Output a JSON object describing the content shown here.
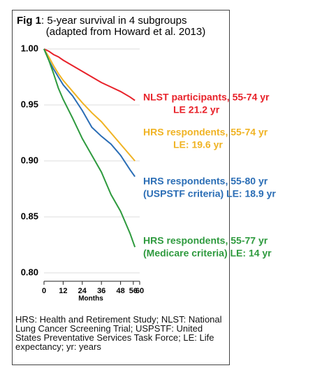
{
  "chart_data": {
    "type": "line",
    "title_prefix": "Fig 1",
    "title": ":  5-year survival in 4 subgroups",
    "subtitle": "(adapted from Howard et al. 2013)",
    "x_label": "Months",
    "x": [
      0,
      3,
      6,
      9,
      12,
      18,
      24,
      30,
      36,
      42,
      48,
      54,
      57
    ],
    "xlim": [
      0,
      60
    ],
    "xticks": [
      0,
      12,
      24,
      36,
      48,
      56,
      60
    ],
    "ylim": [
      0.8,
      1.0
    ],
    "yticks": [
      {
        "value": 0.8,
        "label": "0.80"
      },
      {
        "value": 0.85,
        "label": "0.85"
      },
      {
        "value": 0.9,
        "label": "0.90"
      },
      {
        "value": 0.95,
        "label": "0.95"
      },
      {
        "value": 1.0,
        "label": "1.00"
      }
    ],
    "grid": true,
    "series": [
      {
        "name": "NLST participants, 55-74 yr",
        "note": "LE 21.2 yr",
        "color": "#e8222a",
        "values": [
          1.0,
          0.998,
          0.995,
          0.993,
          0.99,
          0.985,
          0.98,
          0.975,
          0.97,
          0.966,
          0.962,
          0.957,
          0.954
        ]
      },
      {
        "name": "HRS respondents, 55-74 yr",
        "note": "LE: 19.6 yr",
        "color": "#f0b323",
        "values": [
          1.0,
          0.993,
          0.985,
          0.978,
          0.972,
          0.962,
          0.952,
          0.943,
          0.935,
          0.925,
          0.915,
          0.905,
          0.9
        ]
      },
      {
        "name": "HRS respondents, 55-80 yr",
        "note": "(USPSTF criteria) LE: 18.9 yr",
        "color": "#2a6db5",
        "values": [
          1.0,
          0.99,
          0.982,
          0.975,
          0.968,
          0.958,
          0.945,
          0.93,
          0.922,
          0.915,
          0.905,
          0.892,
          0.886
        ]
      },
      {
        "name": "HRS respondents, 55-77 yr",
        "note": "(Medicare criteria) LE: 14 yr",
        "color": "#2e9a3e",
        "values": [
          1.0,
          0.99,
          0.978,
          0.965,
          0.955,
          0.938,
          0.92,
          0.905,
          0.89,
          0.87,
          0.855,
          0.835,
          0.823
        ]
      }
    ],
    "footnote": "HRS: Health and Retirement Study; NLST: National Lung Cancer Screening Trial; USPSTF: United States Preventative Services Task Force; LE: Life expectancy; yr: years"
  }
}
